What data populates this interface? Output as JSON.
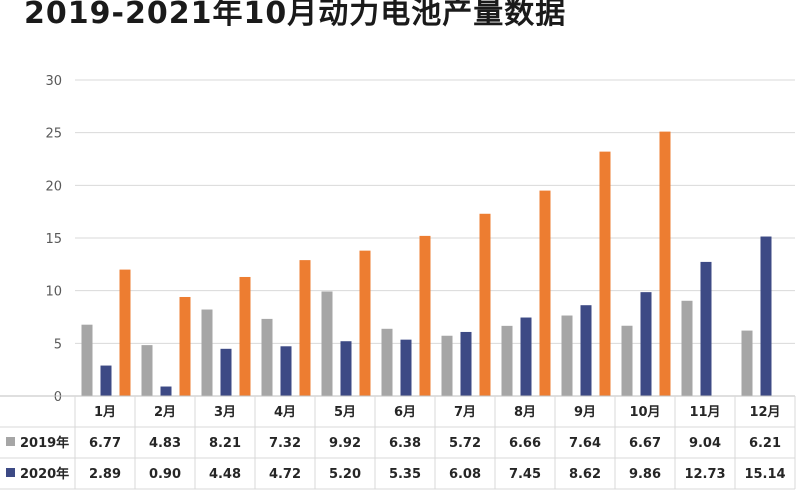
{
  "title": "2019-2021年10月动力电池产量数据",
  "chart_data": {
    "type": "bar",
    "categories": [
      "1月",
      "2月",
      "3月",
      "4月",
      "5月",
      "6月",
      "7月",
      "8月",
      "9月",
      "10月",
      "11月",
      "12月"
    ],
    "ylim": [
      0,
      30
    ],
    "yticks": [
      "0",
      "5",
      "10",
      "15",
      "20",
      "25",
      "30"
    ],
    "grid": true,
    "series": [
      {
        "name": "2019年",
        "color": "#a6a6a6",
        "values": [
          6.77,
          4.83,
          8.21,
          7.32,
          9.92,
          6.38,
          5.72,
          6.66,
          7.64,
          6.67,
          9.04,
          6.21
        ],
        "labels": [
          "6.77",
          "4.83",
          "8.21",
          "7.32",
          "9.92",
          "6.38",
          "5.72",
          "6.66",
          "7.64",
          "6.67",
          "9.04",
          "6.21"
        ]
      },
      {
        "name": "2020年",
        "color": "#3d4a85",
        "values": [
          2.89,
          0.9,
          4.48,
          4.72,
          5.2,
          5.35,
          6.08,
          7.45,
          8.62,
          9.86,
          12.73,
          15.14
        ],
        "labels": [
          "2.89",
          "0.90",
          "4.48",
          "4.72",
          "5.20",
          "5.35",
          "6.08",
          "7.45",
          "8.62",
          "9.86",
          "12.73",
          "15.14"
        ]
      },
      {
        "color": "#ed7d31",
        "values": [
          12.0,
          9.4,
          11.3,
          12.9,
          13.8,
          15.2,
          17.3,
          19.5,
          23.2,
          25.1,
          null,
          null
        ]
      }
    ]
  }
}
